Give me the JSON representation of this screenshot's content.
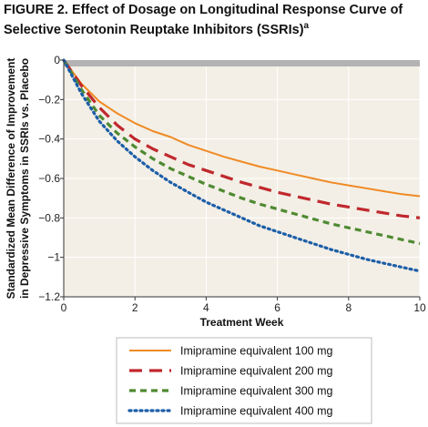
{
  "figure": {
    "label": "FIGURE 2.",
    "title": "Effect of Dosage on Longitudinal Response Curve of Selective Serotonin Reuptake Inhibitors (SSRIs)",
    "footnote_marker": "a"
  },
  "chart_data": {
    "type": "line",
    "title": "Effect of Dosage on Longitudinal Response Curve of Selective Serotonin Reuptake Inhibitors (SSRIs)",
    "xlabel": "Treatment Week",
    "ylabel_lines": [
      "Standardized Mean Difference of Improvement",
      "in Depressive Symptoms in SSRIs vs. Placebo"
    ],
    "xlim": [
      0,
      10
    ],
    "ylim": [
      -1.2,
      0
    ],
    "x_ticks": [
      0,
      2,
      4,
      6,
      8,
      10
    ],
    "y_ticks": [
      0,
      -0.2,
      -0.4,
      -0.6,
      -0.8,
      -1,
      -1.2
    ],
    "x_tick_labels": [
      "0",
      "2",
      "4",
      "6",
      "8",
      "10"
    ],
    "y_tick_labels": [
      "0",
      "−0.2",
      "−0.4",
      "−0.6",
      "−0.8",
      "−1",
      "−1.2"
    ],
    "grid": true,
    "background": "#f3efe6",
    "placebo_band_color": "#b3b3b3",
    "legend_position": "bottom-center",
    "x": [
      0,
      0.5,
      1,
      1.5,
      2,
      2.5,
      3,
      3.5,
      4,
      4.5,
      5,
      5.5,
      6,
      6.5,
      7,
      7.5,
      8,
      8.5,
      9,
      9.5,
      10
    ],
    "series": [
      {
        "name": "Imipramine equivalent 100 mg",
        "color": "#f08a24",
        "style": "solid",
        "values": [
          0,
          -0.12,
          -0.21,
          -0.27,
          -0.32,
          -0.36,
          -0.39,
          -0.43,
          -0.46,
          -0.49,
          -0.515,
          -0.54,
          -0.56,
          -0.58,
          -0.6,
          -0.62,
          -0.635,
          -0.65,
          -0.665,
          -0.68,
          -0.69
        ]
      },
      {
        "name": "Imipramine equivalent 200 mg",
        "color": "#c0282d",
        "style": "dashed",
        "values": [
          0,
          -0.13,
          -0.24,
          -0.33,
          -0.4,
          -0.45,
          -0.49,
          -0.53,
          -0.56,
          -0.59,
          -0.62,
          -0.645,
          -0.67,
          -0.69,
          -0.71,
          -0.73,
          -0.745,
          -0.76,
          -0.775,
          -0.79,
          -0.8
        ]
      },
      {
        "name": "Imipramine equivalent 300 mg",
        "color": "#4f8a32",
        "style": "dashed-short",
        "values": [
          0,
          -0.15,
          -0.28,
          -0.37,
          -0.44,
          -0.5,
          -0.55,
          -0.59,
          -0.63,
          -0.665,
          -0.7,
          -0.73,
          -0.755,
          -0.78,
          -0.805,
          -0.83,
          -0.85,
          -0.87,
          -0.89,
          -0.91,
          -0.93
        ]
      },
      {
        "name": "Imipramine equivalent 400 mg",
        "color": "#1c5ea8",
        "style": "dotted",
        "values": [
          0,
          -0.17,
          -0.31,
          -0.41,
          -0.49,
          -0.56,
          -0.62,
          -0.67,
          -0.72,
          -0.76,
          -0.8,
          -0.84,
          -0.87,
          -0.9,
          -0.93,
          -0.96,
          -0.985,
          -1.01,
          -1.03,
          -1.05,
          -1.07
        ]
      }
    ]
  }
}
